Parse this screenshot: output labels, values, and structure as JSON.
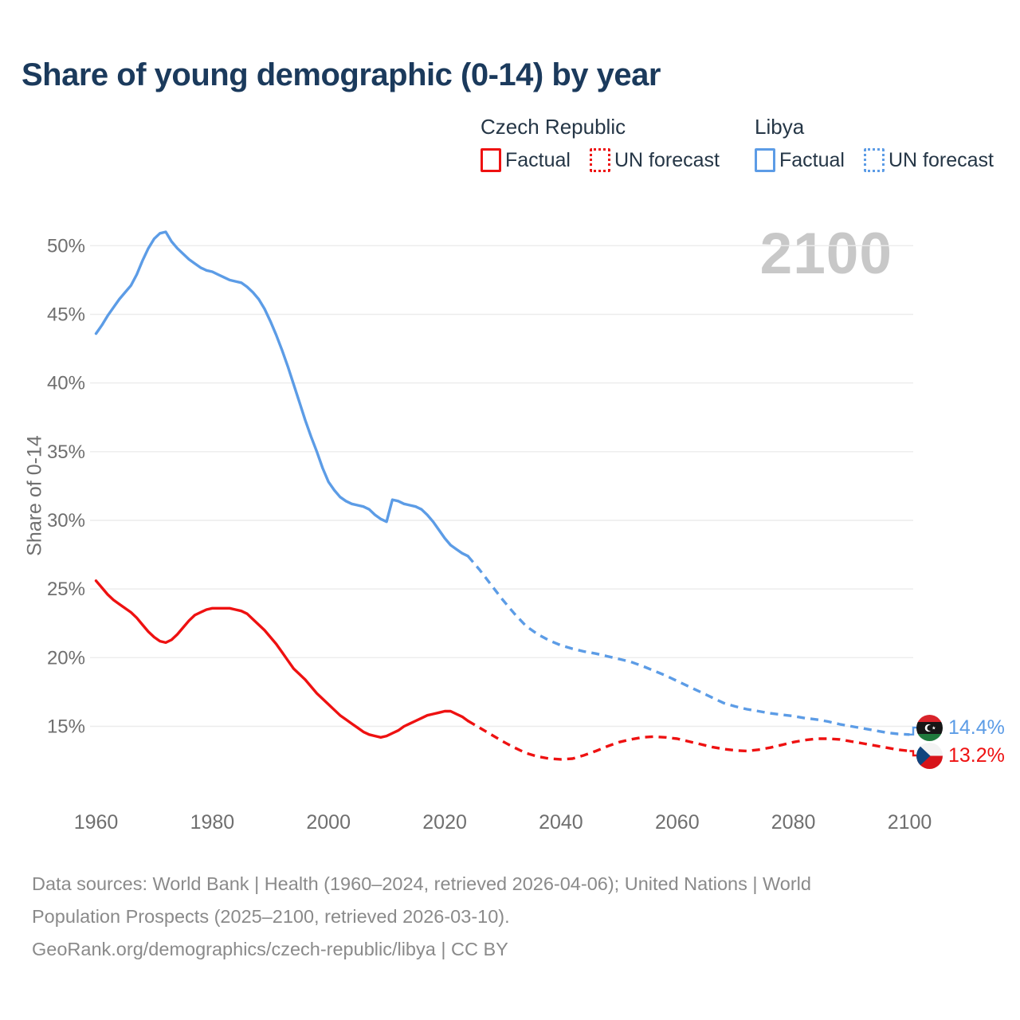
{
  "title": "Share of young demographic (0-14) by year",
  "watermark": "2100",
  "colors": {
    "czech": "#ee1111",
    "libya": "#5c9ce6",
    "grid": "#ececec",
    "axis_text": "#6f6f6f",
    "title_text": "#1b3a5c",
    "watermark_text": "#c8c8c8"
  },
  "legend": {
    "groups": [
      {
        "name": "Czech Republic",
        "items": [
          {
            "label": "Factual",
            "style": "solid",
            "color": "#ee1111"
          },
          {
            "label": "UN forecast",
            "style": "dotted",
            "color": "#ee1111"
          }
        ]
      },
      {
        "name": "Libya",
        "items": [
          {
            "label": "Factual",
            "style": "solid",
            "color": "#5c9ce6"
          },
          {
            "label": "UN forecast",
            "style": "dotted",
            "color": "#5c9ce6"
          }
        ]
      }
    ]
  },
  "end_labels": [
    {
      "country": "Libya",
      "value": "14.4%",
      "color": "#5c9ce6",
      "flag": "libya-flag",
      "value_num": 14.4
    },
    {
      "country": "Czech Republic",
      "value": "13.2%",
      "color": "#ee1111",
      "flag": "czech-republic-flag",
      "value_num": 13.2
    }
  ],
  "footer": {
    "line1": "Data sources: World Bank | Health (1960–2024, retrieved 2026-04-06); United Nations | World",
    "line2": "Population Prospects (2025–2100, retrieved 2026-03-10).",
    "line3": "GeoRank.org/demographics/czech-republic/libya | CC BY"
  },
  "chart_data": {
    "type": "line",
    "title": "Share of young demographic (0-14) by year",
    "xlabel": "",
    "ylabel": "Share of 0-14",
    "xlim": [
      1959,
      2101
    ],
    "ylim": [
      12,
      52
    ],
    "grid": "horizontal",
    "legend_position": "top-right",
    "x_ticks": [
      1960,
      1980,
      2000,
      2020,
      2040,
      2060,
      2080,
      2100
    ],
    "y_ticks": [
      15,
      20,
      25,
      30,
      35,
      40,
      45,
      50
    ],
    "y_tick_suffix": "%",
    "series": [
      {
        "name": "Libya — Factual",
        "color": "#5c9ce6",
        "dashed": false,
        "points": [
          [
            1960,
            43.6
          ],
          [
            1961,
            44.2
          ],
          [
            1962,
            44.9
          ],
          [
            1963,
            45.5
          ],
          [
            1964,
            46.1
          ],
          [
            1965,
            46.6
          ],
          [
            1966,
            47.1
          ],
          [
            1967,
            47.9
          ],
          [
            1968,
            48.9
          ],
          [
            1969,
            49.8
          ],
          [
            1970,
            50.5
          ],
          [
            1971,
            50.9
          ],
          [
            1972,
            51.0
          ],
          [
            1973,
            50.3
          ],
          [
            1974,
            49.8
          ],
          [
            1975,
            49.4
          ],
          [
            1976,
            49.0
          ],
          [
            1977,
            48.7
          ],
          [
            1978,
            48.4
          ],
          [
            1979,
            48.2
          ],
          [
            1980,
            48.1
          ],
          [
            1981,
            47.9
          ],
          [
            1982,
            47.7
          ],
          [
            1983,
            47.5
          ],
          [
            1984,
            47.4
          ],
          [
            1985,
            47.3
          ],
          [
            1986,
            47.0
          ],
          [
            1987,
            46.6
          ],
          [
            1988,
            46.1
          ],
          [
            1989,
            45.4
          ],
          [
            1990,
            44.5
          ],
          [
            1991,
            43.5
          ],
          [
            1992,
            42.4
          ],
          [
            1993,
            41.2
          ],
          [
            1994,
            39.9
          ],
          [
            1995,
            38.6
          ],
          [
            1996,
            37.3
          ],
          [
            1997,
            36.1
          ],
          [
            1998,
            35.0
          ],
          [
            1999,
            33.8
          ],
          [
            2000,
            32.8
          ],
          [
            2001,
            32.2
          ],
          [
            2002,
            31.7
          ],
          [
            2003,
            31.4
          ],
          [
            2004,
            31.2
          ],
          [
            2005,
            31.1
          ],
          [
            2006,
            31.0
          ],
          [
            2007,
            30.8
          ],
          [
            2008,
            30.4
          ],
          [
            2009,
            30.1
          ],
          [
            2010,
            29.9
          ],
          [
            2011,
            31.5
          ],
          [
            2012,
            31.4
          ],
          [
            2013,
            31.2
          ],
          [
            2014,
            31.1
          ],
          [
            2015,
            31.0
          ],
          [
            2016,
            30.8
          ],
          [
            2017,
            30.4
          ],
          [
            2018,
            29.9
          ],
          [
            2019,
            29.3
          ],
          [
            2020,
            28.7
          ],
          [
            2021,
            28.2
          ],
          [
            2022,
            27.9
          ],
          [
            2023,
            27.6
          ],
          [
            2024,
            27.4
          ]
        ]
      },
      {
        "name": "Libya — UN forecast",
        "color": "#5c9ce6",
        "dashed": true,
        "points": [
          [
            2024,
            27.4
          ],
          [
            2026,
            26.4
          ],
          [
            2028,
            25.3
          ],
          [
            2030,
            24.2
          ],
          [
            2032,
            23.2
          ],
          [
            2034,
            22.3
          ],
          [
            2036,
            21.7
          ],
          [
            2038,
            21.25
          ],
          [
            2040,
            20.9
          ],
          [
            2042,
            20.65
          ],
          [
            2044,
            20.45
          ],
          [
            2046,
            20.3
          ],
          [
            2048,
            20.1
          ],
          [
            2050,
            19.9
          ],
          [
            2052,
            19.7
          ],
          [
            2054,
            19.4
          ],
          [
            2056,
            19.05
          ],
          [
            2058,
            18.7
          ],
          [
            2060,
            18.3
          ],
          [
            2062,
            17.9
          ],
          [
            2064,
            17.5
          ],
          [
            2066,
            17.1
          ],
          [
            2068,
            16.7
          ],
          [
            2070,
            16.45
          ],
          [
            2072,
            16.25
          ],
          [
            2074,
            16.1
          ],
          [
            2076,
            15.95
          ],
          [
            2078,
            15.85
          ],
          [
            2080,
            15.75
          ],
          [
            2082,
            15.6
          ],
          [
            2084,
            15.5
          ],
          [
            2086,
            15.35
          ],
          [
            2088,
            15.15
          ],
          [
            2090,
            15.0
          ],
          [
            2092,
            14.85
          ],
          [
            2094,
            14.7
          ],
          [
            2096,
            14.55
          ],
          [
            2098,
            14.45
          ],
          [
            2100,
            14.4
          ]
        ]
      },
      {
        "name": "Czech Republic — Factual",
        "color": "#ee1111",
        "dashed": false,
        "points": [
          [
            1960,
            25.6
          ],
          [
            1961,
            25.1
          ],
          [
            1962,
            24.6
          ],
          [
            1963,
            24.2
          ],
          [
            1964,
            23.9
          ],
          [
            1965,
            23.6
          ],
          [
            1966,
            23.3
          ],
          [
            1967,
            22.9
          ],
          [
            1968,
            22.4
          ],
          [
            1969,
            21.9
          ],
          [
            1970,
            21.5
          ],
          [
            1971,
            21.2
          ],
          [
            1972,
            21.1
          ],
          [
            1973,
            21.3
          ],
          [
            1974,
            21.7
          ],
          [
            1975,
            22.2
          ],
          [
            1976,
            22.7
          ],
          [
            1977,
            23.1
          ],
          [
            1978,
            23.3
          ],
          [
            1979,
            23.5
          ],
          [
            1980,
            23.6
          ],
          [
            1981,
            23.6
          ],
          [
            1982,
            23.6
          ],
          [
            1983,
            23.6
          ],
          [
            1984,
            23.5
          ],
          [
            1985,
            23.4
          ],
          [
            1986,
            23.2
          ],
          [
            1987,
            22.8
          ],
          [
            1988,
            22.4
          ],
          [
            1989,
            22.0
          ],
          [
            1990,
            21.5
          ],
          [
            1991,
            21.0
          ],
          [
            1992,
            20.4
          ],
          [
            1993,
            19.8
          ],
          [
            1994,
            19.2
          ],
          [
            1995,
            18.8
          ],
          [
            1996,
            18.4
          ],
          [
            1997,
            17.9
          ],
          [
            1998,
            17.4
          ],
          [
            1999,
            17.0
          ],
          [
            2000,
            16.6
          ],
          [
            2001,
            16.2
          ],
          [
            2002,
            15.8
          ],
          [
            2003,
            15.5
          ],
          [
            2004,
            15.2
          ],
          [
            2005,
            14.9
          ],
          [
            2006,
            14.6
          ],
          [
            2007,
            14.4
          ],
          [
            2008,
            14.3
          ],
          [
            2009,
            14.2
          ],
          [
            2010,
            14.3
          ],
          [
            2011,
            14.5
          ],
          [
            2012,
            14.7
          ],
          [
            2013,
            15.0
          ],
          [
            2014,
            15.2
          ],
          [
            2015,
            15.4
          ],
          [
            2016,
            15.6
          ],
          [
            2017,
            15.8
          ],
          [
            2018,
            15.9
          ],
          [
            2019,
            16.0
          ],
          [
            2020,
            16.1
          ],
          [
            2021,
            16.1
          ],
          [
            2022,
            15.9
          ],
          [
            2023,
            15.7
          ],
          [
            2024,
            15.4
          ]
        ]
      },
      {
        "name": "Czech Republic — UN forecast",
        "color": "#ee1111",
        "dashed": true,
        "points": [
          [
            2024,
            15.4
          ],
          [
            2026,
            14.9
          ],
          [
            2028,
            14.4
          ],
          [
            2030,
            13.9
          ],
          [
            2032,
            13.45
          ],
          [
            2034,
            13.05
          ],
          [
            2036,
            12.8
          ],
          [
            2038,
            12.65
          ],
          [
            2040,
            12.6
          ],
          [
            2042,
            12.65
          ],
          [
            2044,
            12.9
          ],
          [
            2046,
            13.2
          ],
          [
            2048,
            13.55
          ],
          [
            2050,
            13.85
          ],
          [
            2052,
            14.05
          ],
          [
            2054,
            14.2
          ],
          [
            2056,
            14.25
          ],
          [
            2058,
            14.2
          ],
          [
            2060,
            14.1
          ],
          [
            2062,
            13.9
          ],
          [
            2064,
            13.7
          ],
          [
            2066,
            13.5
          ],
          [
            2068,
            13.35
          ],
          [
            2070,
            13.25
          ],
          [
            2072,
            13.2
          ],
          [
            2074,
            13.3
          ],
          [
            2076,
            13.45
          ],
          [
            2078,
            13.65
          ],
          [
            2080,
            13.85
          ],
          [
            2082,
            14.0
          ],
          [
            2084,
            14.1
          ],
          [
            2086,
            14.1
          ],
          [
            2088,
            14.05
          ],
          [
            2090,
            13.9
          ],
          [
            2092,
            13.75
          ],
          [
            2094,
            13.6
          ],
          [
            2096,
            13.45
          ],
          [
            2098,
            13.3
          ],
          [
            2100,
            13.2
          ]
        ]
      }
    ]
  }
}
